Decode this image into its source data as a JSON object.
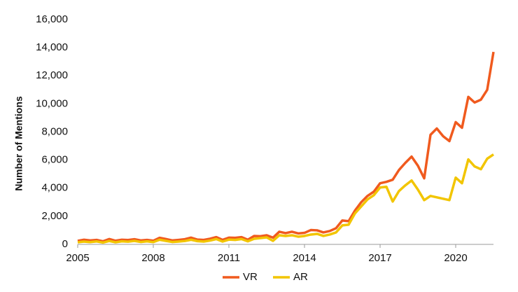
{
  "chart_data": {
    "type": "line",
    "y_label": "Number of Mentions",
    "x": [
      2005,
      2005.25,
      2005.5,
      2005.75,
      2006,
      2006.25,
      2006.5,
      2006.75,
      2007,
      2007.25,
      2007.5,
      2007.75,
      2008,
      2008.25,
      2008.5,
      2008.75,
      2009,
      2009.25,
      2009.5,
      2009.75,
      2010,
      2010.25,
      2010.5,
      2010.75,
      2011,
      2011.25,
      2011.5,
      2011.75,
      2012,
      2012.25,
      2012.5,
      2012.75,
      2013,
      2013.25,
      2013.5,
      2013.75,
      2014,
      2014.25,
      2014.5,
      2014.75,
      2015,
      2015.25,
      2015.5,
      2015.75,
      2016,
      2016.25,
      2016.5,
      2016.75,
      2017,
      2017.25,
      2017.5,
      2017.75,
      2018,
      2018.25,
      2018.5,
      2018.75,
      2019,
      2019.25,
      2019.5,
      2019.75,
      2020,
      2020.25,
      2020.5,
      2020.75,
      2021,
      2021.25,
      2021.5
    ],
    "series": [
      {
        "name": "VR",
        "color": "#f05a1e",
        "values": [
          250,
          330,
          280,
          320,
          220,
          380,
          260,
          330,
          310,
          370,
          280,
          320,
          260,
          470,
          380,
          280,
          320,
          370,
          480,
          340,
          320,
          400,
          520,
          320,
          480,
          470,
          520,
          330,
          600,
          580,
          650,
          480,
          900,
          800,
          900,
          780,
          820,
          1020,
          1000,
          850,
          950,
          1150,
          1700,
          1650,
          2400,
          3000,
          3450,
          3750,
          4350,
          4450,
          4600,
          5300,
          5800,
          6250,
          5600,
          4700,
          7800,
          8250,
          7700,
          7350,
          8700,
          8300,
          10500,
          10100,
          10300,
          11000,
          13700
        ]
      },
      {
        "name": "AR",
        "color": "#f2c500",
        "values": [
          150,
          200,
          160,
          210,
          130,
          240,
          150,
          220,
          190,
          250,
          170,
          220,
          160,
          330,
          250,
          170,
          200,
          240,
          330,
          230,
          200,
          270,
          380,
          200,
          340,
          320,
          380,
          220,
          400,
          450,
          500,
          250,
          650,
          600,
          650,
          550,
          600,
          700,
          750,
          600,
          700,
          850,
          1350,
          1400,
          2200,
          2700,
          3200,
          3500,
          4050,
          4100,
          3050,
          3800,
          4200,
          4550,
          3900,
          3150,
          3450,
          3350,
          3250,
          3150,
          4750,
          4350,
          6050,
          5550,
          5350,
          6100,
          6400
        ]
      }
    ],
    "xlim": [
      2005,
      2021.5
    ],
    "xticks": [
      2005,
      2008,
      2011,
      2014,
      2017,
      2020
    ],
    "ylim": [
      0,
      16000
    ],
    "yticks": [
      0,
      {
        "value": 2000,
        "label": "2,000"
      },
      {
        "value": 4000,
        "label": "4,000"
      },
      {
        "value": 6000,
        "label": "6,000"
      },
      {
        "value": 8000,
        "label": "8,000"
      },
      {
        "value": 10000,
        "label": "10,000"
      },
      {
        "value": 12000,
        "label": "12,000"
      },
      {
        "value": 14000,
        "label": "14,000"
      },
      {
        "value": 16000,
        "label": "16,000"
      }
    ],
    "grid": false,
    "legend": "bottom"
  }
}
